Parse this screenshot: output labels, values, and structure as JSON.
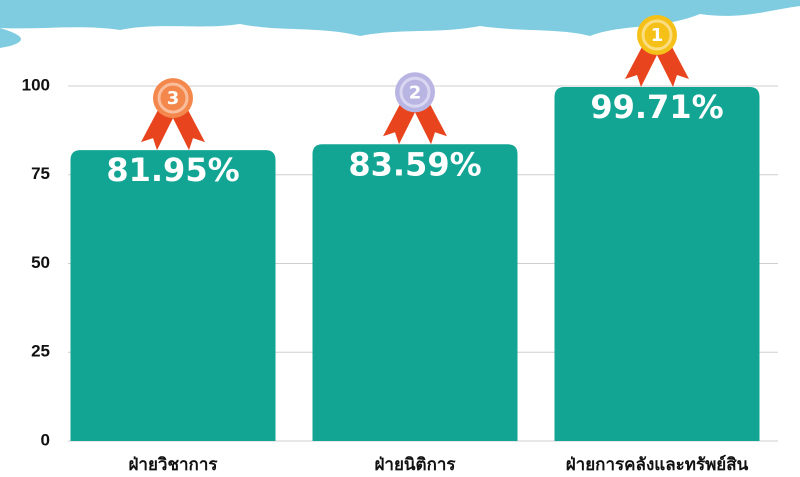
{
  "chart_data": {
    "type": "bar",
    "categories": [
      "ฝ่ายวิชาการ",
      "ฝ่ายนิติการ",
      "ฝ่ายการคลังและทรัพย์สิน"
    ],
    "values": [
      81.95,
      83.59,
      99.71
    ],
    "value_labels": [
      "81.95%",
      "83.59%",
      "99.71%"
    ],
    "ranks": [
      3,
      2,
      1
    ],
    "medal_colors": [
      "#f4874b",
      "#b9b5e3",
      "#f5c118"
    ],
    "color": "#12a594",
    "ylim": [
      0,
      100
    ],
    "yticks": [
      0,
      25,
      50,
      75,
      100
    ],
    "grid": true
  }
}
